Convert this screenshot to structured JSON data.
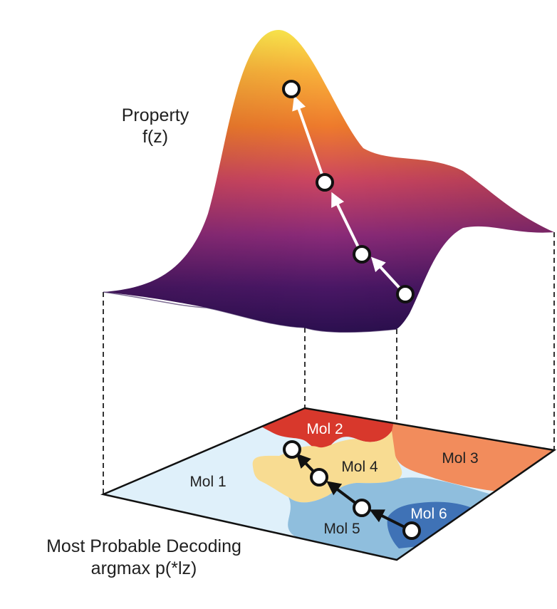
{
  "property_label": {
    "line1": "Property",
    "line2": "f(z)"
  },
  "decoding_label": {
    "line1": "Most Probable Decoding",
    "line2": "argmax p(*lz)"
  },
  "regions": [
    {
      "label": "Mol 1",
      "color": "#dff0fa",
      "text_color": "#222222"
    },
    {
      "label": "Mol 2",
      "color": "#d8382c",
      "text_color": "#ffffff"
    },
    {
      "label": "Mol 3",
      "color": "#f28c5c",
      "text_color": "#222222"
    },
    {
      "label": "Mol 4",
      "color": "#f8dc92",
      "text_color": "#222222"
    },
    {
      "label": "Mol 5",
      "color": "#8fbedd",
      "text_color": "#222222"
    },
    {
      "label": "Mol 6",
      "color": "#3f72b6",
      "text_color": "#ffffff"
    }
  ],
  "colors": {
    "surface_low": "#2b0f4f",
    "surface_mid": "#b0306a",
    "surface_high": "#fbe64a",
    "ascent_path": "#ffffff",
    "latent_path": "#111111",
    "guides": "#333333"
  }
}
